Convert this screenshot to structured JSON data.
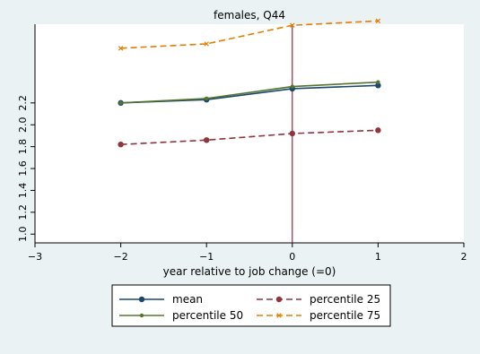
{
  "chart_data": {
    "type": "line",
    "title": "females, Q44",
    "xlabel": "year relative to job change (=0)",
    "ylabel": "",
    "xlim": [
      -3,
      2
    ],
    "ylim": [
      0.92,
      2.92
    ],
    "x_ticks": [
      "−3",
      "−2",
      "−1",
      "0",
      "1",
      "2"
    ],
    "x_tick_values": [
      -3,
      -2,
      -1,
      0,
      1,
      2
    ],
    "y_ticks": [
      "1.0",
      "1.2",
      "1.4",
      "1.6",
      "1.8",
      "2.0",
      "2.2"
    ],
    "y_tick_values": [
      1.0,
      1.2,
      1.4,
      1.6,
      1.8,
      2.0,
      2.2
    ],
    "grid": "none",
    "reference_line_x": 0,
    "legend_position": "bottom",
    "x": [
      -2,
      -1,
      0,
      1
    ],
    "series": [
      {
        "name": "mean",
        "values": [
          2.2,
          2.23,
          2.33,
          2.36
        ],
        "color": "#1a476f",
        "marker": "circle",
        "dash": "solid"
      },
      {
        "name": "percentile 25",
        "values": [
          1.82,
          1.86,
          1.92,
          1.95
        ],
        "color": "#90353b",
        "marker": "circle",
        "dash": "dashed"
      },
      {
        "name": "percentile 50",
        "values": [
          2.2,
          2.24,
          2.35,
          2.39
        ],
        "color": "#55752f",
        "marker": "dot",
        "dash": "solid"
      },
      {
        "name": "percentile 75",
        "values": [
          2.7,
          2.74,
          2.91,
          2.95
        ],
        "color": "#e37e00",
        "marker": "x",
        "dash": "dashed"
      }
    ]
  },
  "colors": {
    "background": "#eaf2f3",
    "plot_background": "#ffffff",
    "reference_line": "#800020"
  }
}
